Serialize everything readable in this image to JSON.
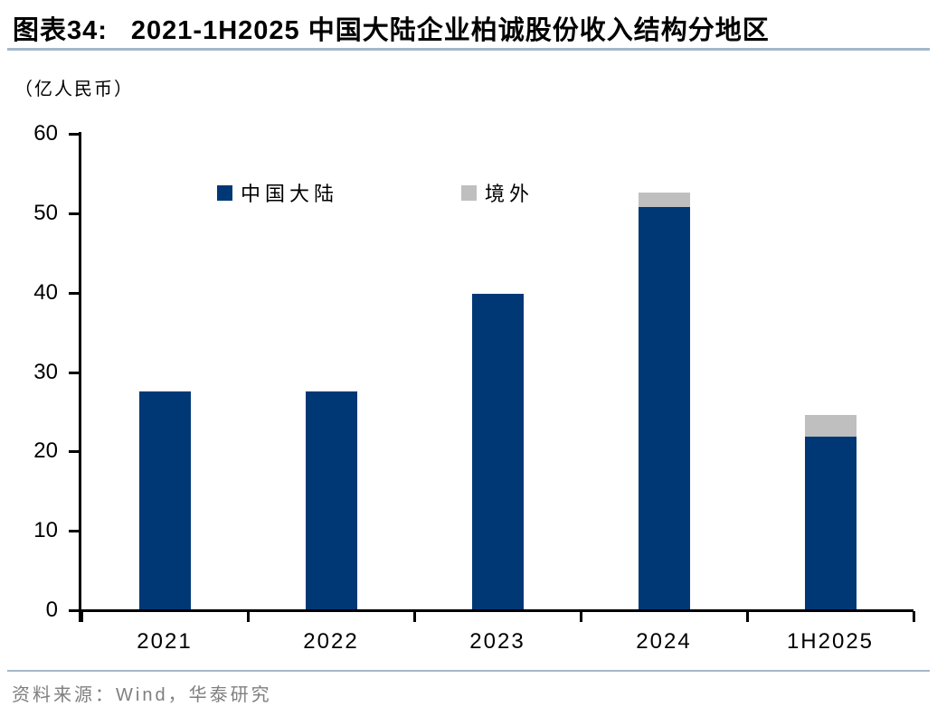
{
  "figure": {
    "label": "图表34:",
    "title": "2021-1H2025 中国大陆企业柏诚股份收入结构分地区",
    "unit_label": "（亿人民币）",
    "source": "资料来源：Wind，华泰研究"
  },
  "colors": {
    "mainland_blue": "#003876",
    "overseas_gray": "#bfbfbf",
    "divider_blue": "#a3b7c9",
    "axis_black": "#000000",
    "source_gray": "#7f7f7f"
  },
  "chart_data": {
    "type": "bar",
    "stacked": true,
    "title": "2021-1H2025 中国大陆企业柏诚股份收入结构分地区",
    "unit": "亿人民币",
    "categories": [
      "2021",
      "2022",
      "2023",
      "2024",
      "1H2025"
    ],
    "series": [
      {
        "key": "mainland",
        "name": "中国大陆",
        "color": "#003876",
        "values": [
          27.4,
          27.4,
          39.7,
          50.7,
          21.8
        ]
      },
      {
        "key": "overseas",
        "name": "境外",
        "color": "#bfbfbf",
        "values": [
          0,
          0,
          0,
          1.8,
          2.7
        ]
      }
    ],
    "ylim": [
      0,
      60
    ],
    "y_major_ticks": [
      0,
      10,
      20,
      30,
      40,
      50,
      60
    ],
    "grid": false,
    "legend_position": "top-center-inside"
  }
}
